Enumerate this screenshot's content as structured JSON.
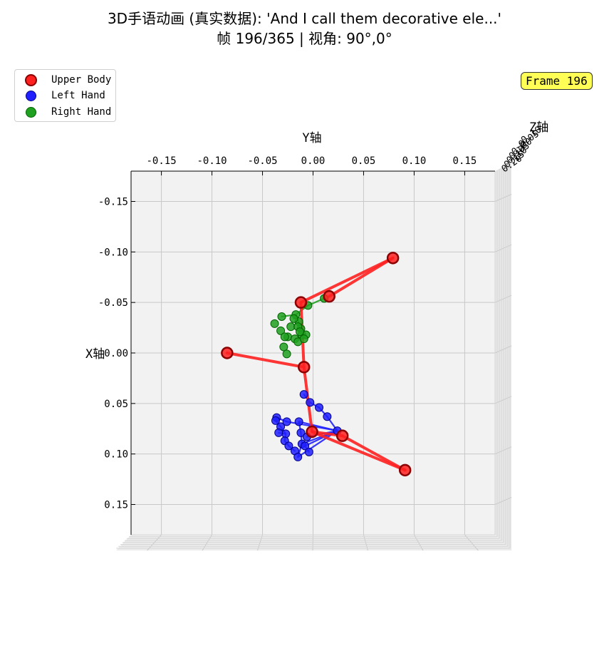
{
  "title": {
    "line1": "3D手语动画 (真实数据): 'And I call them decorative ele...'",
    "line2": "帧 196/365 | 视角: 90°,0°"
  },
  "frame_badge": "Frame 196",
  "legend": [
    {
      "label": "Upper Body",
      "color": "#ff2020",
      "edge": "#8b0000"
    },
    {
      "label": "Left Hand",
      "color": "#2020ff",
      "edge": "#00008b"
    },
    {
      "label": "Right Hand",
      "color": "#20a020",
      "edge": "#006400"
    }
  ],
  "chart_data": {
    "type": "scatter",
    "projection": "3d",
    "view": {
      "elevation": 90,
      "azimuth": 0
    },
    "xlabel": "X轴",
    "ylabel": "Y轴",
    "zlabel": "Z轴",
    "xlim": [
      -0.18,
      0.18
    ],
    "ylim": [
      -0.18,
      0.18
    ],
    "y_ticks": [
      "-0.15",
      "-0.10",
      "-0.05",
      "0.00",
      "0.05",
      "0.10",
      "0.15"
    ],
    "x_ticks": [
      "-0.15",
      "-0.10",
      "-0.05",
      "0.00",
      "0.05",
      "0.10",
      "0.15"
    ],
    "z_ticks": [
      "0.20",
      "0.15",
      "0.10",
      "0.05",
      "0.00",
      "-0.05",
      "-0.10"
    ],
    "grid": true,
    "legend_position": "top-left",
    "series": [
      {
        "name": "Upper Body",
        "color": "#ff2020",
        "edge": "#8b0000",
        "points": [
          {
            "y": 0.079,
            "x": -0.094
          },
          {
            "y": 0.016,
            "x": -0.056
          },
          {
            "y": -0.012,
            "x": -0.05
          },
          {
            "y": -0.085,
            "x": 0.0
          },
          {
            "y": -0.009,
            "x": 0.014
          },
          {
            "y": -0.001,
            "x": 0.078
          },
          {
            "y": 0.029,
            "x": 0.082
          },
          {
            "y": 0.091,
            "x": 0.116
          }
        ],
        "edges": [
          [
            0,
            1
          ],
          [
            0,
            2
          ],
          [
            2,
            4
          ],
          [
            3,
            4
          ],
          [
            4,
            5
          ],
          [
            5,
            6
          ],
          [
            6,
            7
          ],
          [
            5,
            7
          ]
        ]
      },
      {
        "name": "Left Hand",
        "color": "#2020ff",
        "edge": "#00008b",
        "points": [
          {
            "y": -0.009,
            "x": 0.041
          },
          {
            "y": -0.003,
            "x": 0.049
          },
          {
            "y": 0.006,
            "x": 0.054
          },
          {
            "y": 0.014,
            "x": 0.063
          },
          {
            "y": 0.024,
            "x": 0.077
          },
          {
            "y": -0.036,
            "x": 0.064
          },
          {
            "y": -0.037,
            "x": 0.067
          },
          {
            "y": -0.032,
            "x": 0.073
          },
          {
            "y": -0.027,
            "x": 0.08
          },
          {
            "y": -0.028,
            "x": 0.087
          },
          {
            "y": -0.024,
            "x": 0.092
          },
          {
            "y": -0.018,
            "x": 0.097
          },
          {
            "y": -0.015,
            "x": 0.103
          },
          {
            "y": -0.011,
            "x": 0.09
          },
          {
            "y": -0.012,
            "x": 0.079
          },
          {
            "y": -0.008,
            "x": 0.092
          },
          {
            "y": -0.004,
            "x": 0.098
          },
          {
            "y": -0.026,
            "x": 0.068
          },
          {
            "y": -0.014,
            "x": 0.068
          },
          {
            "y": -0.034,
            "x": 0.079
          },
          {
            "y": -0.006,
            "x": 0.083
          }
        ],
        "edges": [
          [
            0,
            1
          ],
          [
            1,
            2
          ],
          [
            2,
            3
          ],
          [
            3,
            4
          ],
          [
            4,
            17
          ],
          [
            4,
            18
          ],
          [
            4,
            13
          ],
          [
            4,
            12
          ],
          [
            4,
            15
          ],
          [
            17,
            5
          ],
          [
            5,
            6
          ],
          [
            18,
            14
          ],
          [
            14,
            13
          ],
          [
            13,
            12
          ],
          [
            15,
            16
          ],
          [
            6,
            7
          ],
          [
            7,
            8
          ],
          [
            8,
            9
          ],
          [
            9,
            10
          ],
          [
            10,
            11
          ],
          [
            19,
            8
          ],
          [
            20,
            4
          ]
        ]
      },
      {
        "name": "Right Hand",
        "color": "#20a020",
        "edge": "#006400",
        "points": [
          {
            "y": 0.011,
            "x": -0.054
          },
          {
            "y": -0.005,
            "x": -0.047
          },
          {
            "y": -0.017,
            "x": -0.038
          },
          {
            "y": -0.031,
            "x": -0.036
          },
          {
            "y": -0.038,
            "x": -0.029
          },
          {
            "y": -0.032,
            "x": -0.022
          },
          {
            "y": -0.025,
            "x": -0.016
          },
          {
            "y": -0.018,
            "x": -0.014
          },
          {
            "y": -0.014,
            "x": -0.031
          },
          {
            "y": -0.012,
            "x": -0.024
          },
          {
            "y": -0.011,
            "x": -0.018
          },
          {
            "y": -0.022,
            "x": -0.026
          },
          {
            "y": -0.015,
            "x": -0.026
          },
          {
            "y": -0.007,
            "x": -0.018
          },
          {
            "y": -0.019,
            "x": -0.034
          },
          {
            "y": -0.028,
            "x": -0.016
          },
          {
            "y": -0.015,
            "x": -0.011
          },
          {
            "y": -0.029,
            "x": -0.006
          },
          {
            "y": -0.026,
            "x": 0.001
          },
          {
            "y": -0.013,
            "x": -0.021
          },
          {
            "y": -0.009,
            "x": -0.014
          }
        ],
        "edges": [
          [
            0,
            1
          ],
          [
            1,
            2
          ],
          [
            2,
            3
          ],
          [
            2,
            8
          ],
          [
            2,
            14
          ],
          [
            2,
            9
          ]
        ]
      }
    ]
  }
}
